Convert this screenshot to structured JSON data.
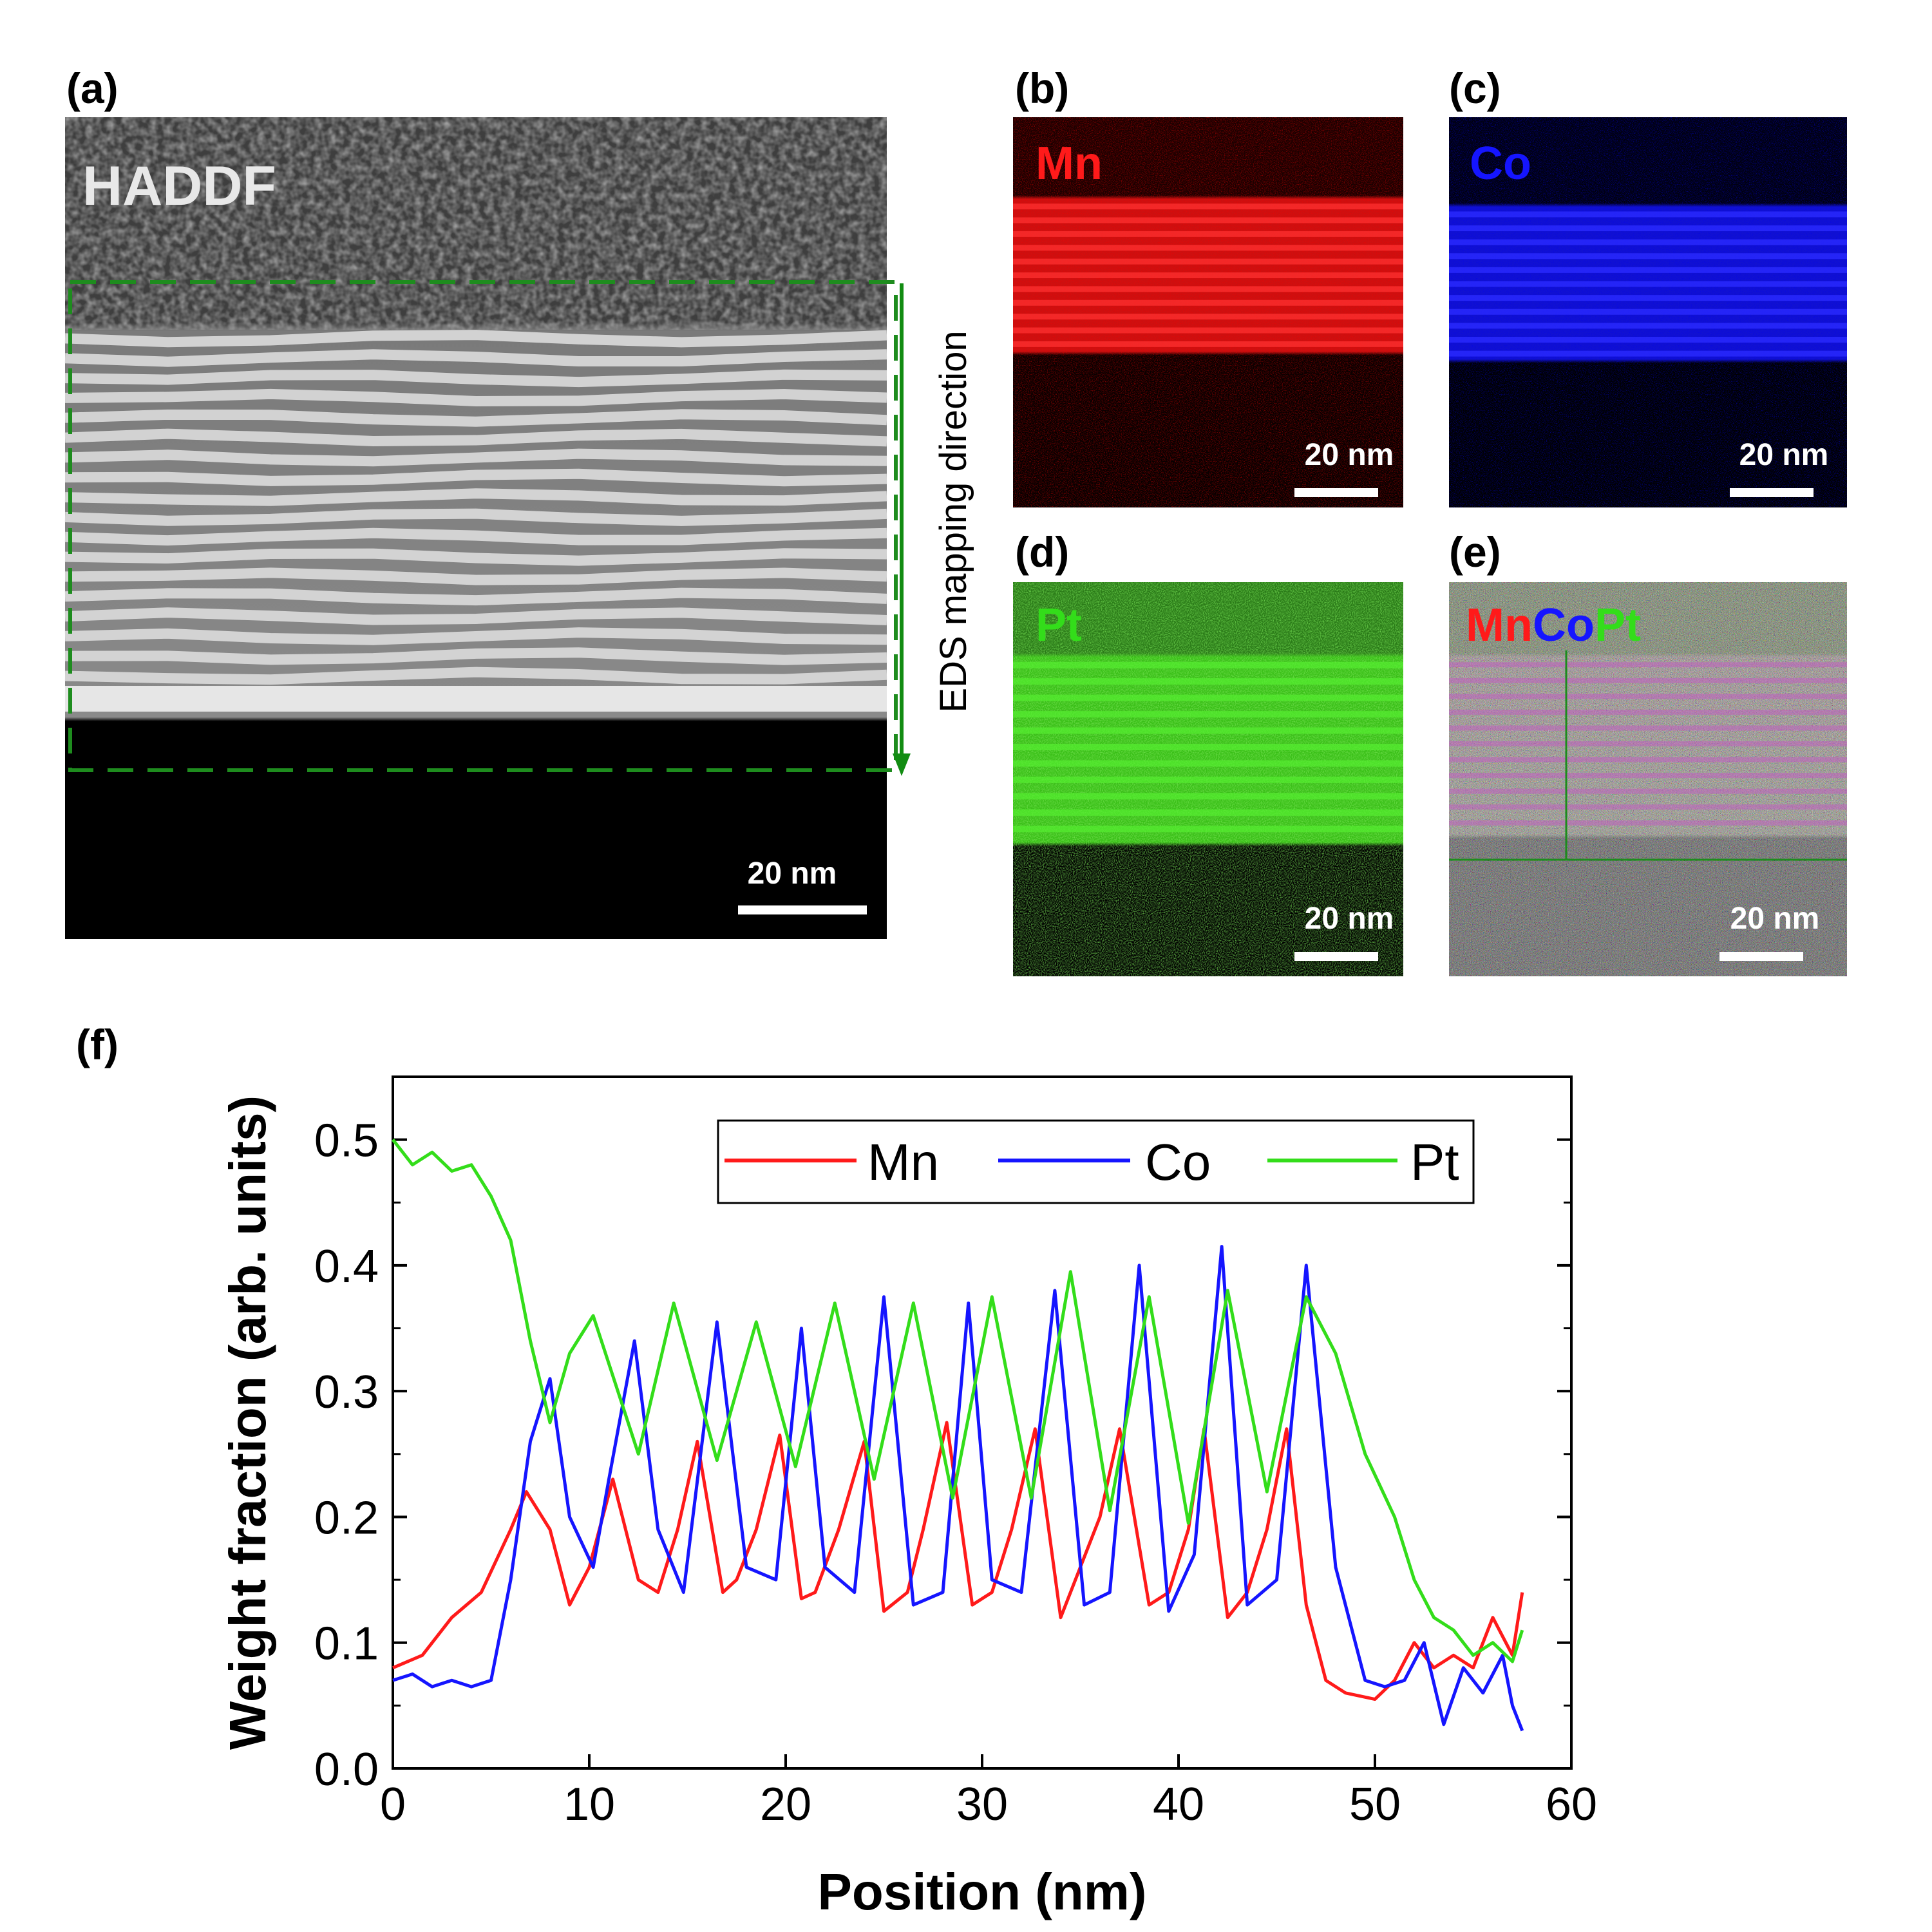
{
  "figure": {
    "panels": {
      "a": {
        "letter": "(a)",
        "label": "HADDF",
        "scale": "20 nm",
        "arrow_label": "EDS mapping direction"
      },
      "b": {
        "letter": "(b)",
        "label": "Mn",
        "scale": "20 nm"
      },
      "c": {
        "letter": "(c)",
        "label": "Co",
        "scale": "20 nm"
      },
      "d": {
        "letter": "(d)",
        "label": "Pt",
        "scale": "20 nm"
      },
      "e": {
        "letter": "(e)",
        "label_mn": "Mn",
        "label_co": "Co",
        "label_pt": "Pt",
        "scale": "20 nm"
      },
      "f": {
        "letter": "(f)"
      }
    },
    "colors": {
      "mn": "#ff1a1a",
      "co": "#1515ff",
      "pt": "#33dd1a",
      "dashed_box": "#1e8c1e",
      "arrow": "#128c12"
    }
  },
  "chart_data": {
    "type": "line",
    "xlabel": "Position (nm)",
    "ylabel": "Weight fraction (arb. units)",
    "xlim": [
      0,
      60
    ],
    "ylim": [
      0,
      0.55
    ],
    "xticks": [
      "0",
      "10",
      "20",
      "30",
      "40",
      "50",
      "60"
    ],
    "yticks": [
      "0.0",
      "0.1",
      "0.2",
      "0.3",
      "0.4",
      "0.5"
    ],
    "legend": [
      "Mn",
      "Co",
      "Pt"
    ],
    "legend_position": "top-right",
    "series": [
      {
        "name": "Mn",
        "color": "#ff1a1a",
        "x": [
          0,
          1.5,
          3,
          4.5,
          6,
          6.8,
          8,
          9,
          10,
          11.2,
          12.5,
          13.5,
          14.5,
          15.5,
          16.8,
          17.5,
          18.5,
          19.7,
          20.8,
          21.5,
          22.7,
          24,
          25,
          26.2,
          27,
          28.2,
          29.5,
          30.5,
          31.5,
          32.7,
          34,
          35,
          36,
          37,
          38.5,
          39.5,
          40.5,
          41.3,
          42.5,
          43.5,
          44.5,
          45.5,
          46.5,
          47.5,
          48.5,
          50,
          51,
          52,
          53,
          54,
          55,
          56,
          57,
          57.5
        ],
        "y": [
          0.08,
          0.09,
          0.12,
          0.14,
          0.19,
          0.22,
          0.19,
          0.13,
          0.16,
          0.23,
          0.15,
          0.14,
          0.19,
          0.26,
          0.14,
          0.15,
          0.19,
          0.265,
          0.135,
          0.14,
          0.19,
          0.26,
          0.125,
          0.14,
          0.19,
          0.275,
          0.13,
          0.14,
          0.19,
          0.27,
          0.12,
          0.16,
          0.2,
          0.27,
          0.13,
          0.14,
          0.19,
          0.27,
          0.12,
          0.14,
          0.19,
          0.27,
          0.13,
          0.07,
          0.06,
          0.055,
          0.07,
          0.1,
          0.08,
          0.09,
          0.08,
          0.12,
          0.09,
          0.14
        ]
      },
      {
        "name": "Co",
        "color": "#1515ff",
        "x": [
          0,
          1,
          2,
          3,
          4,
          5,
          6,
          7,
          8,
          9,
          10.2,
          11,
          12.3,
          13.5,
          14.8,
          16.5,
          18,
          19.5,
          20.8,
          22,
          23.5,
          25,
          26.5,
          28,
          29.3,
          30.5,
          32,
          33.7,
          35.2,
          36.5,
          38,
          39.5,
          40.8,
          42.2,
          43.5,
          45,
          46.5,
          48,
          49.5,
          50.5,
          51.5,
          52.5,
          53.5,
          54.5,
          55.5,
          56.5,
          57,
          57.5
        ],
        "y": [
          0.07,
          0.075,
          0.065,
          0.07,
          0.065,
          0.07,
          0.15,
          0.26,
          0.31,
          0.2,
          0.16,
          0.23,
          0.34,
          0.19,
          0.14,
          0.355,
          0.16,
          0.15,
          0.35,
          0.16,
          0.14,
          0.375,
          0.13,
          0.14,
          0.37,
          0.15,
          0.14,
          0.38,
          0.13,
          0.14,
          0.4,
          0.125,
          0.17,
          0.415,
          0.13,
          0.15,
          0.4,
          0.16,
          0.07,
          0.065,
          0.07,
          0.1,
          0.035,
          0.08,
          0.06,
          0.09,
          0.05,
          0.03
        ]
      },
      {
        "name": "Pt",
        "color": "#33dd1a",
        "x": [
          0,
          1,
          2,
          3,
          4,
          5,
          6,
          7,
          8,
          9,
          10.2,
          12.5,
          14.3,
          16.5,
          18.5,
          20.5,
          22.5,
          24.5,
          26.5,
          28.5,
          30.5,
          32.5,
          34.5,
          36.5,
          38.5,
          40.5,
          42.5,
          44.5,
          46.5,
          48,
          49.5,
          51,
          52,
          53,
          54,
          55,
          56,
          57,
          57.5
        ],
        "y": [
          0.5,
          0.48,
          0.49,
          0.475,
          0.48,
          0.455,
          0.42,
          0.34,
          0.275,
          0.33,
          0.36,
          0.25,
          0.37,
          0.245,
          0.355,
          0.24,
          0.37,
          0.23,
          0.37,
          0.215,
          0.375,
          0.215,
          0.395,
          0.205,
          0.375,
          0.195,
          0.38,
          0.22,
          0.375,
          0.33,
          0.25,
          0.2,
          0.15,
          0.12,
          0.11,
          0.09,
          0.1,
          0.085,
          0.11
        ]
      }
    ]
  }
}
